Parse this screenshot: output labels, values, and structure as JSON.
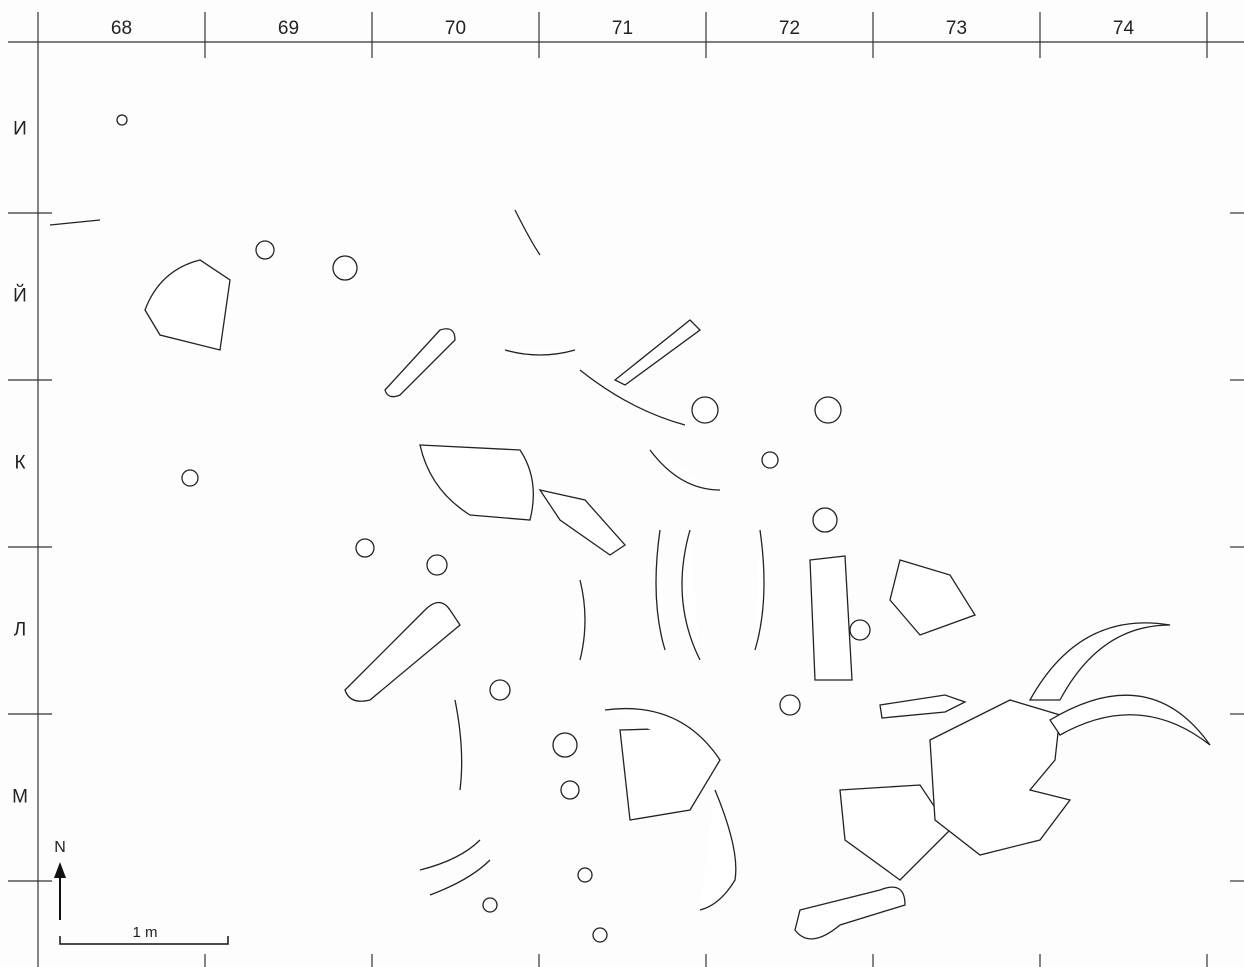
{
  "columns": [
    "68",
    "69",
    "70",
    "71",
    "72",
    "73",
    "74"
  ],
  "rows": [
    "И",
    "Й",
    "К",
    "Л",
    "М"
  ],
  "north_label": "N",
  "scale_label": "1 m"
}
